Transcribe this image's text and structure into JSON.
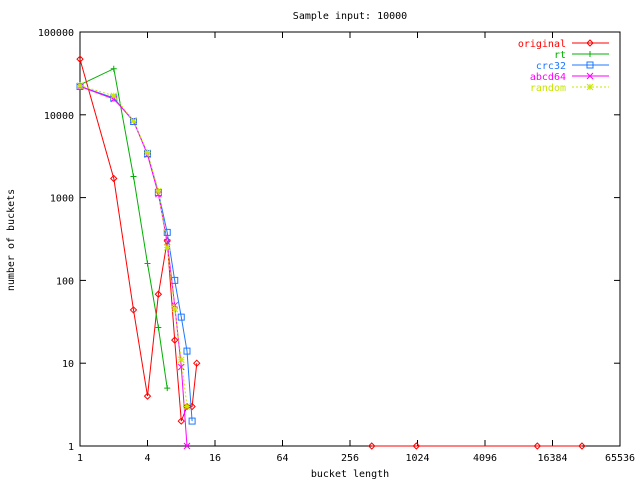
{
  "chart_data": {
    "type": "line",
    "title": "Sample input: 10000",
    "xlabel": "bucket length",
    "ylabel": "number of buckets",
    "xscale": "log2",
    "yscale": "log10",
    "xlim": [
      1,
      65536
    ],
    "ylim": [
      1,
      100000
    ],
    "xticks": [
      1,
      4,
      16,
      64,
      256,
      1024,
      4096,
      16384,
      65536
    ],
    "xtick_labels": [
      "1",
      "4",
      "16",
      "64",
      "256",
      "1024",
      "4096",
      "16384",
      "65536"
    ],
    "yticks": [
      1,
      10,
      100,
      1000,
      10000,
      100000
    ],
    "ytick_labels": [
      "1",
      "10",
      "100",
      "1000",
      "10000",
      "100000"
    ],
    "legend_position": "top-right",
    "grid": false,
    "series": [
      {
        "name": "original",
        "color": "#ff0000",
        "marker": "diamond",
        "x": [
          1,
          2,
          3,
          4,
          5,
          6,
          7,
          8,
          9,
          10,
          11,
          12,
          400,
          1000,
          12000,
          30000
        ],
        "y": [
          47000,
          1700,
          44,
          4,
          68,
          300,
          19,
          2,
          3,
          3,
          10,
          0,
          1,
          1,
          1,
          1
        ]
      },
      {
        "name": "rt",
        "color": "#00b000",
        "marker": "plus",
        "x": [
          1,
          2,
          3,
          4,
          5,
          6
        ],
        "y": [
          23000,
          36000,
          1800,
          160,
          27,
          5
        ]
      },
      {
        "name": "crc32",
        "color": "#1e78ff",
        "marker": "square",
        "x": [
          1,
          2,
          3,
          4,
          5,
          6,
          7,
          8,
          9,
          10
        ],
        "y": [
          22000,
          16000,
          8300,
          3400,
          1150,
          380,
          100,
          36,
          14,
          2
        ]
      },
      {
        "name": "abcd64",
        "color": "#ff00ff",
        "marker": "cross",
        "x": [
          1,
          2,
          3,
          4,
          5,
          6,
          7,
          8,
          9
        ],
        "y": [
          22000,
          15500,
          8500,
          3300,
          1100,
          290,
          50,
          9,
          1
        ]
      },
      {
        "name": "random",
        "color": "#c8e600",
        "marker": "star",
        "x": [
          1,
          2,
          3,
          4,
          5,
          6,
          7,
          8,
          9
        ],
        "y": [
          22500,
          17000,
          8400,
          3500,
          1200,
          250,
          45,
          11,
          3
        ]
      }
    ]
  }
}
